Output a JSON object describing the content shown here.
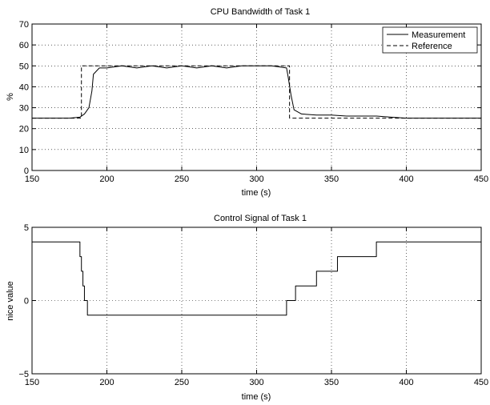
{
  "chart_data": [
    {
      "type": "line",
      "title": "CPU Bandwidth of Task 1",
      "xlabel": "time (s)",
      "ylabel": "%",
      "xlim": [
        150,
        450
      ],
      "ylim": [
        0,
        70
      ],
      "xticks": [
        150,
        200,
        250,
        300,
        350,
        400,
        450
      ],
      "yticks": [
        0,
        10,
        20,
        30,
        40,
        50,
        60,
        70
      ],
      "grid": true,
      "legend_position": "top-right",
      "series": [
        {
          "name": "Measurement",
          "style": "solid",
          "x": [
            150,
            175,
            182,
            185,
            188,
            190,
            191,
            195,
            200,
            210,
            220,
            230,
            240,
            250,
            260,
            270,
            280,
            290,
            300,
            310,
            320,
            321,
            323,
            325,
            330,
            340,
            350,
            360,
            370,
            380,
            390,
            400,
            410,
            420,
            430,
            440,
            450
          ],
          "y": [
            25,
            25,
            25.5,
            27,
            30,
            38,
            46,
            49,
            49,
            50,
            49,
            50,
            49,
            50,
            49,
            50,
            49,
            50,
            50,
            50,
            49,
            45,
            36,
            29,
            27,
            26.5,
            26.5,
            26,
            26,
            26,
            25.5,
            25,
            25,
            25,
            25,
            25,
            25
          ]
        },
        {
          "name": "Reference",
          "style": "dashed",
          "x": [
            150,
            183,
            183,
            322,
            322,
            450
          ],
          "y": [
            25,
            25,
            50,
            50,
            25,
            25
          ]
        }
      ]
    },
    {
      "type": "line",
      "title": "Control Signal of Task 1",
      "xlabel": "time (s)",
      "ylabel": "nice value",
      "xlim": [
        150,
        450
      ],
      "ylim": [
        -5,
        5
      ],
      "xticks": [
        150,
        200,
        250,
        300,
        350,
        400,
        450
      ],
      "yticks": [
        -5,
        0,
        5
      ],
      "grid": true,
      "series": [
        {
          "x": [
            150,
            182,
            182,
            183,
            183,
            184,
            184,
            185,
            185,
            187,
            187,
            320,
            320,
            326,
            326,
            332,
            332,
            340,
            340,
            354,
            354,
            364,
            364,
            380,
            380,
            418,
            418,
            450
          ],
          "y": [
            4,
            4,
            3,
            3,
            2,
            2,
            1,
            1,
            0,
            0,
            -1,
            -1,
            0,
            0,
            1,
            1,
            1,
            1,
            2,
            2,
            3,
            3,
            3,
            3,
            4,
            4,
            4,
            4
          ]
        }
      ]
    }
  ]
}
